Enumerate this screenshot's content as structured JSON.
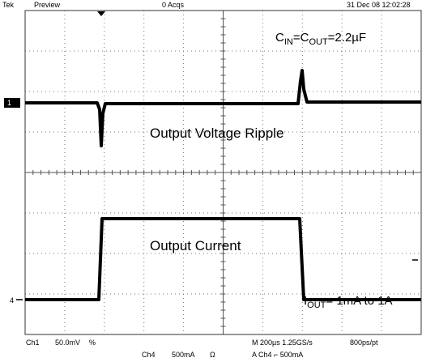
{
  "header": {
    "brand": "Tek",
    "mode": "Preview",
    "acqs": "0 Acqs",
    "datetime": "31 Dec 08 12:02:28"
  },
  "markers": {
    "ch1": "1",
    "ch4": "4"
  },
  "annotations": {
    "capacitance": [
      "C",
      "IN",
      "=C",
      "OUT",
      "=2.2µF"
    ],
    "top_label": "Output Voltage Ripple",
    "bottom_label": "Output Current",
    "current": [
      "I",
      "OUT",
      "= 1mA to 1A"
    ]
  },
  "footer": {
    "ch1": "Ch1",
    "ch1_scale": "50.0mV",
    "ch1_bw": "%",
    "ch4": "Ch4",
    "ch4_scale": "500mA",
    "ch4_imp": "Ω",
    "timebase": "M 200µs 1.25GS/s",
    "sample": "800ps/pt",
    "trigger": "A Ch4 ⌐ 500mA"
  }
}
